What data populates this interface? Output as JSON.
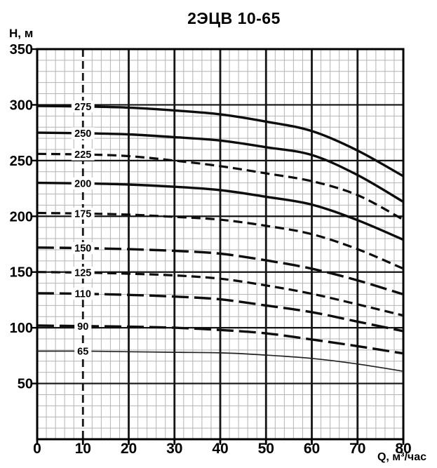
{
  "chart_data": {
    "type": "line",
    "title": "2ЭЦВ 10-65",
    "xlabel": "Q, м³/час",
    "ylabel": "Н, м",
    "xlim": [
      0,
      80
    ],
    "ylim": [
      0,
      350
    ],
    "x_ticks": [
      0,
      10,
      20,
      30,
      40,
      50,
      60,
      70,
      80
    ],
    "y_ticks": [
      50,
      100,
      150,
      200,
      250,
      300,
      350
    ],
    "grid": {
      "minor_x_step": 2,
      "minor_y_step": 10,
      "major_x_step": 10,
      "major_y_step": 50,
      "dashed_vertical_gridline_at_x": 10,
      "grid_on": true
    },
    "legend_position": "labels-on-curves-at-x-10",
    "x": [
      0,
      10,
      20,
      30,
      40,
      50,
      60,
      70,
      80
    ],
    "series": [
      {
        "name": "275",
        "line_style": "solid",
        "values": [
          299,
          298.5,
          297.5,
          295,
          291.5,
          285,
          276.5,
          259,
          236
        ]
      },
      {
        "name": "250",
        "line_style": "solid",
        "values": [
          275,
          274.5,
          273.5,
          271,
          268,
          262,
          255,
          237,
          213
        ]
      },
      {
        "name": "225",
        "line_style": "dashed",
        "values": [
          256,
          255.5,
          254,
          250,
          245,
          238.5,
          231.5,
          219,
          197
        ]
      },
      {
        "name": "200",
        "line_style": "solid",
        "values": [
          230,
          229.5,
          228.5,
          226.5,
          223.5,
          217.5,
          210.5,
          196.5,
          179
        ]
      },
      {
        "name": "175",
        "line_style": "dashed",
        "values": [
          203,
          202.5,
          201.5,
          199.5,
          197,
          191.5,
          184,
          170.5,
          153
        ]
      },
      {
        "name": "150",
        "line_style": "long-dash",
        "values": [
          172,
          171.5,
          170.5,
          169,
          166.5,
          160.5,
          153,
          142.5,
          130
        ]
      },
      {
        "name": "125",
        "line_style": "dashed",
        "values": [
          150,
          149.5,
          148.5,
          147,
          144,
          138,
          130.5,
          121,
          111
        ]
      },
      {
        "name": "110",
        "line_style": "long-dash",
        "values": [
          131,
          130.5,
          129.5,
          128,
          125.5,
          120,
          114,
          105.5,
          97
        ]
      },
      {
        "name": "90",
        "line_style": "long-dash",
        "values": [
          102,
          101.5,
          101,
          100,
          98,
          95,
          89.5,
          83.5,
          77
        ]
      },
      {
        "name": "65",
        "line_style": "thin-solid",
        "values": [
          79,
          79,
          78.5,
          78,
          77.5,
          75.5,
          72.5,
          67.5,
          61
        ]
      }
    ]
  },
  "colors": {
    "background": "#ffffff",
    "curve": "#0d0d0d",
    "major_grid": "#151515",
    "minor_grid": "#b4b4b4",
    "border": "#000000",
    "text": "#000000"
  }
}
